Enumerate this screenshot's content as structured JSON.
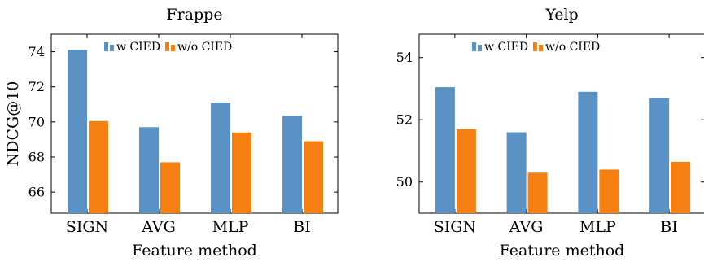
{
  "chart_data": [
    {
      "type": "bar",
      "title": "Frappe",
      "xlabel": "Feature method",
      "ylabel": "NDCG@10",
      "categories": [
        "SIGN",
        "AVG",
        "MLP",
        "BI"
      ],
      "series": [
        {
          "name": "w CIED",
          "values": [
            74.1,
            69.7,
            71.1,
            70.35
          ]
        },
        {
          "name": "w/o CIED",
          "values": [
            70.05,
            67.7,
            69.4,
            68.9
          ]
        }
      ],
      "ylim": [
        64.8,
        75.0
      ],
      "yticks": [
        66,
        68,
        70,
        72,
        74
      ],
      "legend_position": "top-left",
      "grid": false
    },
    {
      "type": "bar",
      "title": "Yelp",
      "xlabel": "Feature method",
      "ylabel": "",
      "categories": [
        "SIGN",
        "AVG",
        "MLP",
        "BI"
      ],
      "series": [
        {
          "name": "w CIED",
          "values": [
            53.05,
            51.6,
            52.9,
            52.7
          ]
        },
        {
          "name": "w/o CIED",
          "values": [
            51.7,
            50.3,
            50.4,
            50.65
          ]
        }
      ],
      "ylim": [
        49.0,
        54.75
      ],
      "yticks": [
        50,
        52,
        54
      ],
      "legend_position": "top-left",
      "grid": false
    }
  ],
  "colors": {
    "w_cied": "#5b92c5",
    "wo_cied": "#f57f10"
  }
}
